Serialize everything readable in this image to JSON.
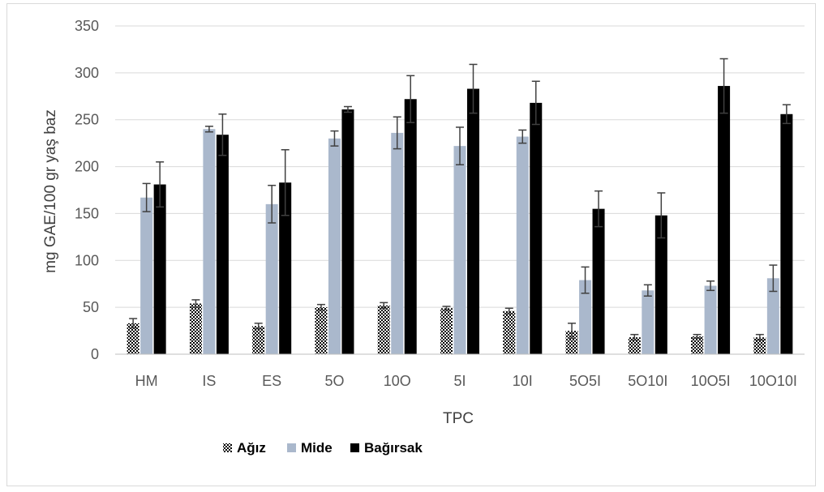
{
  "chart_data": {
    "type": "bar",
    "title": "",
    "xlabel": "TPC",
    "ylabel": "mg GAE/100 gr yaş baz",
    "ylim": [
      0,
      350
    ],
    "yticks": [
      0,
      50,
      100,
      150,
      200,
      250,
      300,
      350
    ],
    "grid": true,
    "legend_position": "bottom",
    "categories": [
      "HM",
      "IS",
      "ES",
      "5O",
      "10O",
      "5I",
      "10I",
      "5O5I",
      "5O10I",
      "10O5I",
      "10O10I"
    ],
    "series": [
      {
        "name": "Ağız",
        "color": "#000000",
        "pattern": "checker",
        "values": [
          33,
          54,
          30,
          50,
          52,
          49,
          46,
          25,
          18,
          19,
          18
        ],
        "errors": [
          5,
          4,
          3,
          3,
          3,
          2,
          3,
          8,
          3,
          2,
          3
        ]
      },
      {
        "name": "Mide",
        "color": "#aab8cc",
        "pattern": "solid",
        "values": [
          167,
          240,
          160,
          230,
          236,
          222,
          232,
          79,
          68,
          73,
          81
        ],
        "errors": [
          15,
          3,
          20,
          8,
          17,
          20,
          7,
          14,
          6,
          5,
          14
        ]
      },
      {
        "name": "Bağırsak",
        "color": "#000000",
        "pattern": "solid",
        "values": [
          181,
          234,
          183,
          261,
          272,
          283,
          268,
          155,
          148,
          286,
          256
        ],
        "errors": [
          24,
          22,
          35,
          3,
          25,
          26,
          23,
          19,
          24,
          29,
          10
        ]
      }
    ]
  }
}
